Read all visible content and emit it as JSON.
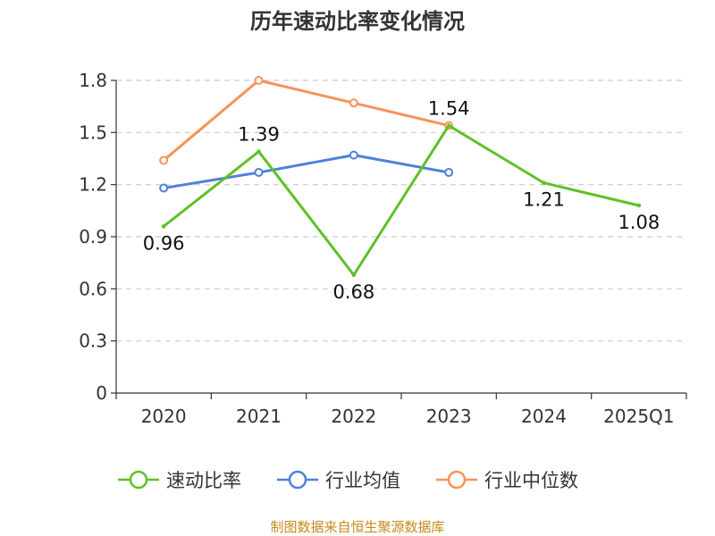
{
  "chart_data": {
    "type": "line",
    "title": "历年速动比率变化情况",
    "categories": [
      "2020",
      "2021",
      "2022",
      "2023",
      "2024",
      "2025Q1"
    ],
    "ylim": [
      0,
      1.8
    ],
    "yticks": [
      "0",
      "0.3",
      "0.6",
      "0.9",
      "1.2",
      "1.5",
      "1.8"
    ],
    "series": [
      {
        "name": "速动比率",
        "color": "#5ec127",
        "values": [
          0.96,
          1.39,
          0.68,
          1.54,
          1.21,
          1.08
        ],
        "labels": [
          "0.96",
          "1.39",
          "0.68",
          "1.54",
          "1.21",
          "1.08"
        ]
      },
      {
        "name": "行业均值",
        "color": "#4e80dc",
        "values": [
          1.18,
          1.27,
          1.37,
          1.27,
          null,
          null
        ]
      },
      {
        "name": "行业中位数",
        "color": "#f99258",
        "values": [
          1.34,
          1.8,
          1.67,
          1.54,
          null,
          null
        ]
      }
    ],
    "grid": true,
    "legend": "bottom"
  },
  "source": "制图数据来自恒生聚源数据库"
}
